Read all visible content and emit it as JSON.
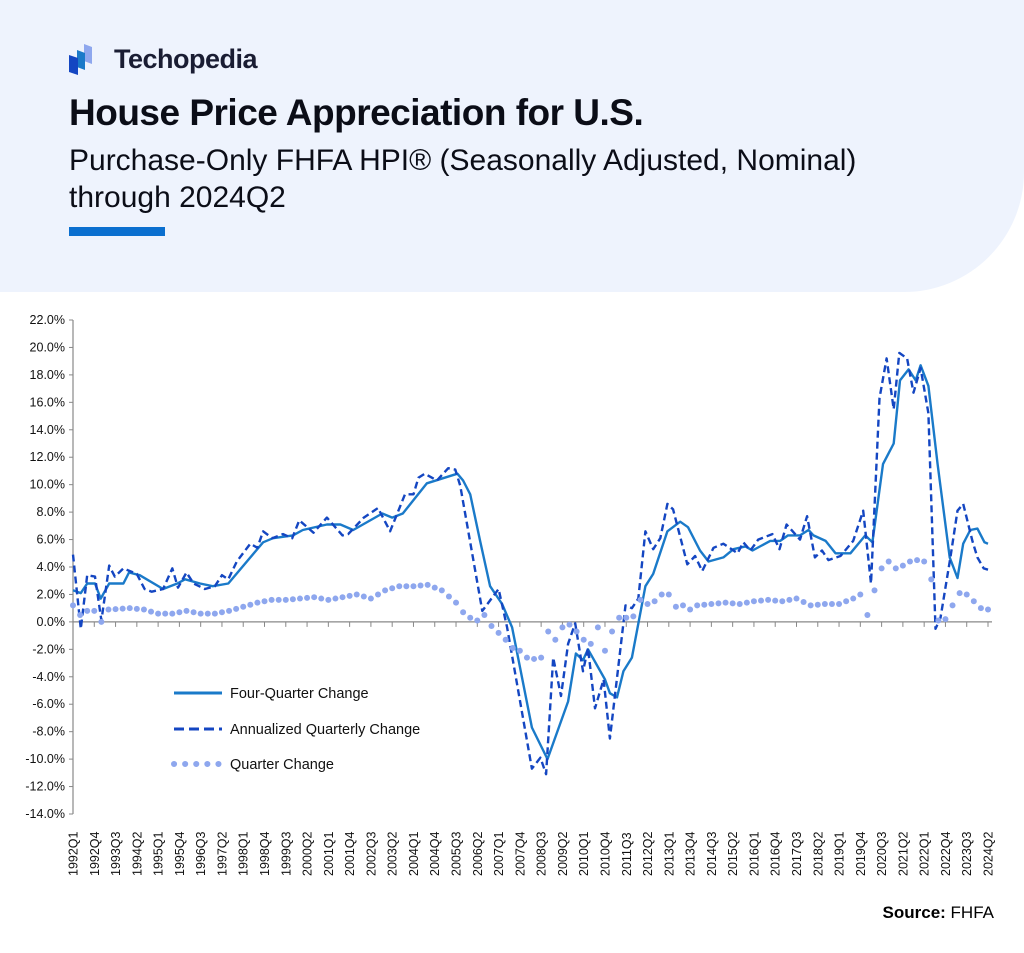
{
  "brand": {
    "name": "Techopedia"
  },
  "header": {
    "title": "House Price Appreciation for U.S.",
    "subtitle": "Purchase-Only FHFA HPI® (Seasonally Adjusted, Nominal) through 2024Q2"
  },
  "source": {
    "label": "Source:",
    "value": "FHFA"
  },
  "colors": {
    "four_quarter": "#1a7ac9",
    "annualized": "#1446c2",
    "quarter": "#8ea7ee",
    "accent": "#0a6fcf",
    "header_bg": "#eef3fd"
  },
  "chart_data": {
    "type": "line",
    "title": "House Price Appreciation for U.S.",
    "x_unit": "quarter index (0 = 1992Q1, 129 = 2024Q2)",
    "ylim": [
      -14,
      22
    ],
    "y_ticks": [
      "22.0%",
      "20.0%",
      "18.0%",
      "16.0%",
      "14.0%",
      "12.0%",
      "10.0%",
      "8.0%",
      "6.0%",
      "4.0%",
      "2.0%",
      "0.0%",
      "-2.0%",
      "-4.0%",
      "-6.0%",
      "-8.0%",
      "-10.0%",
      "-12.0%",
      "-14.0%"
    ],
    "x_tick_labels": [
      "1992Q1",
      "1992Q4",
      "1993Q3",
      "1994Q2",
      "1995Q1",
      "1995Q4",
      "1996Q3",
      "1997Q2",
      "1998Q1",
      "1998Q4",
      "1999Q3",
      "2000Q2",
      "2001Q1",
      "2001Q4",
      "2002Q3",
      "2003Q2",
      "2004Q1",
      "2004Q4",
      "2005Q3",
      "2006Q2",
      "2007Q1",
      "2007Q4",
      "2008Q3",
      "2009Q2",
      "2010Q1",
      "2010Q4",
      "2011Q3",
      "2012Q2",
      "2013Q1",
      "2013Q4",
      "2014Q3",
      "2015Q2",
      "2016Q1",
      "2016Q4",
      "2017Q3",
      "2018Q2",
      "2019Q1",
      "2019Q4",
      "2020Q3",
      "2021Q2",
      "2022Q1",
      "2022Q4",
      "2023Q3",
      "2024Q2"
    ],
    "legend": {
      "placement": "bottom-left",
      "entries": [
        "Four-Quarter Change",
        "Annualized Quarterly Change",
        "Quarter Change"
      ]
    },
    "series": [
      {
        "name": "Four-Quarter Change",
        "style": "solid",
        "points": [
          [
            0,
            2.3
          ],
          [
            1.1,
            2.1
          ],
          [
            2,
            2.8
          ],
          [
            3.1,
            2.8
          ],
          [
            3.9,
            1.7
          ],
          [
            5.1,
            2.8
          ],
          [
            7.1,
            2.8
          ],
          [
            7.9,
            3.6
          ],
          [
            9.4,
            3.4
          ],
          [
            12.7,
            2.4
          ],
          [
            14.7,
            2.8
          ],
          [
            15.8,
            3.1
          ],
          [
            17.9,
            2.8
          ],
          [
            19.7,
            2.6
          ],
          [
            21.9,
            2.8
          ],
          [
            26.8,
            5.8
          ],
          [
            28.2,
            6.1
          ],
          [
            31,
            6.3
          ],
          [
            32.4,
            6.7
          ],
          [
            35.8,
            7.1
          ],
          [
            37.7,
            7.1
          ],
          [
            39.5,
            6.7
          ],
          [
            43.6,
            7.9
          ],
          [
            45,
            7.6
          ],
          [
            46.5,
            7.9
          ],
          [
            49.9,
            10.1
          ],
          [
            54.2,
            10.8
          ],
          [
            55,
            10.3
          ],
          [
            56,
            9.3
          ],
          [
            57.4,
            5.9
          ],
          [
            58.8,
            2.6
          ],
          [
            60.5,
            1.3
          ],
          [
            61.9,
            -0.4
          ],
          [
            64.7,
            -7.7
          ],
          [
            66.9,
            -10.0
          ],
          [
            69.8,
            -5.8
          ],
          [
            70.9,
            -2.3
          ],
          [
            71.9,
            -2.8
          ],
          [
            72.6,
            -2.0
          ],
          [
            75,
            -4.2
          ],
          [
            75.7,
            -5.2
          ],
          [
            76.7,
            -5.5
          ],
          [
            77.6,
            -3.6
          ],
          [
            78.8,
            -2.6
          ],
          [
            80.7,
            2.6
          ],
          [
            81.8,
            3.5
          ],
          [
            83.8,
            6.6
          ],
          [
            85.6,
            7.3
          ],
          [
            86.7,
            6.9
          ],
          [
            88.4,
            5.2
          ],
          [
            89.6,
            4.4
          ],
          [
            91.7,
            4.7
          ],
          [
            93.1,
            5.3
          ],
          [
            94.8,
            5.5
          ],
          [
            95.8,
            5.2
          ],
          [
            98.3,
            5.9
          ],
          [
            99.7,
            5.9
          ],
          [
            100.8,
            6.3
          ],
          [
            102.5,
            6.3
          ],
          [
            103.7,
            6.7
          ],
          [
            104.4,
            6.3
          ],
          [
            106.1,
            5.9
          ],
          [
            107.5,
            5.0
          ],
          [
            109.6,
            5.0
          ],
          [
            111.7,
            6.3
          ],
          [
            112.7,
            5.8
          ],
          [
            114.2,
            11.5
          ],
          [
            115.7,
            13.0
          ],
          [
            116.6,
            17.6
          ],
          [
            117.8,
            18.4
          ],
          [
            118.8,
            17.6
          ],
          [
            119.5,
            18.7
          ],
          [
            120.6,
            17.2
          ],
          [
            121.9,
            11.5
          ],
          [
            123.6,
            4.7
          ],
          [
            124.7,
            3.2
          ],
          [
            125.5,
            5.7
          ],
          [
            126.5,
            6.7
          ],
          [
            127.5,
            6.8
          ],
          [
            128.5,
            5.8
          ],
          [
            129,
            5.7
          ]
        ]
      },
      {
        "name": "Annualized Quarterly Change",
        "style": "dashed",
        "points": [
          [
            0,
            4.9
          ],
          [
            1.1,
            -0.5
          ],
          [
            2,
            3.4
          ],
          [
            3.1,
            3.3
          ],
          [
            4,
            0.1
          ],
          [
            5.1,
            4.1
          ],
          [
            5.9,
            3.3
          ],
          [
            7.1,
            3.9
          ],
          [
            9,
            3.5
          ],
          [
            10.1,
            2.4
          ],
          [
            11.1,
            2.2
          ],
          [
            12.7,
            2.4
          ],
          [
            14,
            3.9
          ],
          [
            14.8,
            2.5
          ],
          [
            16,
            3.6
          ],
          [
            17,
            2.8
          ],
          [
            18.6,
            2.4
          ],
          [
            20,
            2.6
          ],
          [
            21,
            3.4
          ],
          [
            21.9,
            3.1
          ],
          [
            23.1,
            4.4
          ],
          [
            25,
            5.7
          ],
          [
            26,
            5.4
          ],
          [
            26.8,
            6.6
          ],
          [
            28.1,
            6.1
          ],
          [
            29.6,
            6.4
          ],
          [
            30.9,
            6.1
          ],
          [
            31.9,
            7.4
          ],
          [
            33.9,
            6.5
          ],
          [
            35.8,
            7.6
          ],
          [
            38,
            6.3
          ],
          [
            38.8,
            6.4
          ],
          [
            41,
            7.6
          ],
          [
            43,
            8.3
          ],
          [
            44.7,
            6.6
          ],
          [
            46.8,
            9.3
          ],
          [
            48,
            9.3
          ],
          [
            48.7,
            10.5
          ],
          [
            49.6,
            10.8
          ],
          [
            51.3,
            10.3
          ],
          [
            52.9,
            11.2
          ],
          [
            53.9,
            11.1
          ],
          [
            54.6,
            9.9
          ],
          [
            57.7,
            0.8
          ],
          [
            60,
            2.4
          ],
          [
            61.2,
            -0.4
          ],
          [
            64.7,
            -10.7
          ],
          [
            65.9,
            -9.9
          ],
          [
            66.7,
            -11.1
          ],
          [
            67.7,
            -2.6
          ],
          [
            68.8,
            -5.4
          ],
          [
            69.8,
            -1.6
          ],
          [
            70.8,
            -0.1
          ],
          [
            71.9,
            -3.6
          ],
          [
            72.6,
            -1.9
          ],
          [
            73.6,
            -6.3
          ],
          [
            74.8,
            -4.2
          ],
          [
            75.7,
            -8.5
          ],
          [
            77.9,
            1.2
          ],
          [
            78.8,
            1.0
          ],
          [
            79.7,
            1.7
          ],
          [
            80.7,
            6.6
          ],
          [
            81.8,
            5.3
          ],
          [
            82.8,
            6.1
          ],
          [
            83.8,
            8.6
          ],
          [
            84.6,
            8.2
          ],
          [
            86.6,
            4.2
          ],
          [
            87.7,
            4.8
          ],
          [
            88.7,
            3.7
          ],
          [
            90.3,
            5.4
          ],
          [
            91.7,
            5.7
          ],
          [
            93.7,
            5.0
          ],
          [
            94.5,
            5.8
          ],
          [
            95.5,
            5.2
          ],
          [
            96.6,
            6.0
          ],
          [
            98.6,
            6.4
          ],
          [
            99.6,
            5.3
          ],
          [
            100.6,
            7.1
          ],
          [
            102.5,
            6.0
          ],
          [
            103.5,
            7.7
          ],
          [
            104.6,
            4.7
          ],
          [
            105.6,
            5.2
          ],
          [
            106.5,
            4.5
          ],
          [
            108.2,
            4.8
          ],
          [
            110,
            5.9
          ],
          [
            111.4,
            8.1
          ],
          [
            112.5,
            2.8
          ],
          [
            113.7,
            16.3
          ],
          [
            114.7,
            19.2
          ],
          [
            115.7,
            15.5
          ],
          [
            116.5,
            19.6
          ],
          [
            117.6,
            19.2
          ],
          [
            118.5,
            16.7
          ],
          [
            119.5,
            18.5
          ],
          [
            120.6,
            15.2
          ],
          [
            121.6,
            -0.5
          ],
          [
            122.3,
            0.3
          ],
          [
            123.7,
            4.7
          ],
          [
            124.7,
            8.1
          ],
          [
            125.5,
            8.6
          ],
          [
            126.8,
            5.9
          ],
          [
            127.5,
            4.7
          ],
          [
            128.4,
            3.9
          ],
          [
            129,
            3.8
          ]
        ]
      },
      {
        "name": "Quarter Change",
        "style": "dotted",
        "points": [
          [
            0,
            1.2
          ],
          [
            1,
            0.5
          ],
          [
            2,
            0.8
          ],
          [
            3,
            0.8
          ],
          [
            4,
            0.0
          ],
          [
            5,
            0.9
          ],
          [
            8,
            1.0
          ],
          [
            10,
            0.9
          ],
          [
            12,
            0.6
          ],
          [
            14,
            0.6
          ],
          [
            16,
            0.8
          ],
          [
            18,
            0.6
          ],
          [
            20,
            0.6
          ],
          [
            22,
            0.8
          ],
          [
            24,
            1.1
          ],
          [
            26,
            1.4
          ],
          [
            28,
            1.6
          ],
          [
            30,
            1.6
          ],
          [
            32,
            1.7
          ],
          [
            34,
            1.8
          ],
          [
            36,
            1.6
          ],
          [
            38,
            1.8
          ],
          [
            40,
            2.0
          ],
          [
            42,
            1.7
          ],
          [
            44,
            2.3
          ],
          [
            46,
            2.6
          ],
          [
            48,
            2.6
          ],
          [
            50,
            2.7
          ],
          [
            52,
            2.3
          ],
          [
            54,
            1.4
          ],
          [
            55,
            0.7
          ],
          [
            56,
            0.3
          ],
          [
            57,
            0.1
          ],
          [
            58,
            0.5
          ],
          [
            59,
            -0.3
          ],
          [
            60,
            -0.8
          ],
          [
            61,
            -1.3
          ],
          [
            62,
            -1.9
          ],
          [
            63,
            -2.1
          ],
          [
            64,
            -2.6
          ],
          [
            65,
            -2.7
          ],
          [
            66,
            -2.6
          ],
          [
            67,
            -0.7
          ],
          [
            68,
            -1.3
          ],
          [
            69,
            -0.4
          ],
          [
            70,
            -0.2
          ],
          [
            71,
            -0.7
          ],
          [
            72,
            -1.3
          ],
          [
            73,
            -1.6
          ],
          [
            74,
            -0.4
          ],
          [
            75,
            -2.1
          ],
          [
            76,
            -0.7
          ],
          [
            77,
            0.3
          ],
          [
            78,
            0.3
          ],
          [
            79,
            0.4
          ],
          [
            80,
            1.6
          ],
          [
            81,
            1.3
          ],
          [
            82,
            1.5
          ],
          [
            83,
            2.0
          ],
          [
            84,
            2.0
          ],
          [
            85,
            1.1
          ],
          [
            86,
            1.2
          ],
          [
            87,
            0.9
          ],
          [
            88,
            1.2
          ],
          [
            90,
            1.3
          ],
          [
            92,
            1.4
          ],
          [
            94,
            1.3
          ],
          [
            96,
            1.5
          ],
          [
            98,
            1.6
          ],
          [
            100,
            1.5
          ],
          [
            102,
            1.7
          ],
          [
            104,
            1.2
          ],
          [
            106,
            1.3
          ],
          [
            108,
            1.3
          ],
          [
            110,
            1.7
          ],
          [
            111,
            2.0
          ],
          [
            112,
            0.5
          ],
          [
            113,
            2.3
          ],
          [
            114,
            3.9
          ],
          [
            115,
            4.4
          ],
          [
            116,
            3.9
          ],
          [
            117,
            4.1
          ],
          [
            118,
            4.4
          ],
          [
            119,
            4.5
          ],
          [
            120,
            4.4
          ],
          [
            121,
            3.1
          ],
          [
            122,
            0.1
          ],
          [
            123,
            0.2
          ],
          [
            124,
            1.2
          ],
          [
            125,
            2.1
          ],
          [
            126,
            2.0
          ],
          [
            127,
            1.5
          ],
          [
            128,
            1.0
          ],
          [
            129,
            0.9
          ]
        ]
      }
    ]
  }
}
